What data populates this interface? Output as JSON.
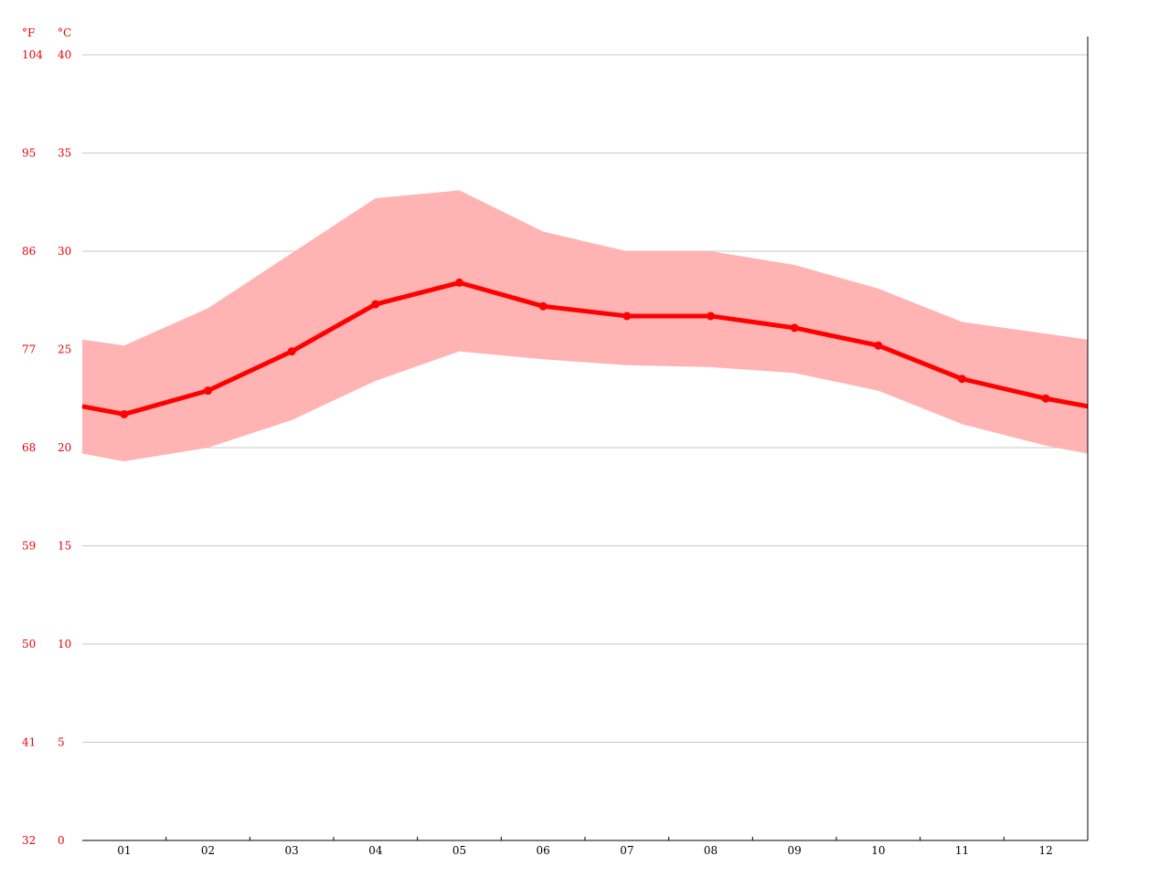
{
  "chart_data": {
    "type": "area",
    "units": {
      "fahrenheit": "°F",
      "celsius": "°C"
    },
    "categories": [
      "01",
      "02",
      "03",
      "04",
      "05",
      "06",
      "07",
      "08",
      "09",
      "10",
      "11",
      "12"
    ],
    "ylim": [
      0,
      40
    ],
    "y_ticks_c": [
      "0",
      "5",
      "10",
      "15",
      "20",
      "25",
      "30",
      "35",
      "40"
    ],
    "y_ticks_f": [
      "32",
      "41",
      "50",
      "59",
      "68",
      "77",
      "86",
      "95",
      "104"
    ],
    "grid": true,
    "series": [
      {
        "values": [
          21.7,
          22.9,
          24.9,
          27.3,
          28.4,
          27.2,
          26.7,
          26.7,
          26.1,
          25.2,
          23.5,
          22.5
        ],
        "role": "mean",
        "color": "#ff0000"
      },
      {
        "values": [
          25.2,
          27.1,
          29.9,
          32.7,
          33.1,
          31.0,
          30.0,
          30.0,
          29.3,
          28.1,
          26.4,
          25.8
        ],
        "role": "max",
        "color": "#ffb3b3"
      },
      {
        "values": [
          19.3,
          20.0,
          21.4,
          23.4,
          24.9,
          24.5,
          24.2,
          24.1,
          23.8,
          22.9,
          21.2,
          20.1
        ],
        "role": "min",
        "color": "#ffb3b3"
      }
    ]
  }
}
